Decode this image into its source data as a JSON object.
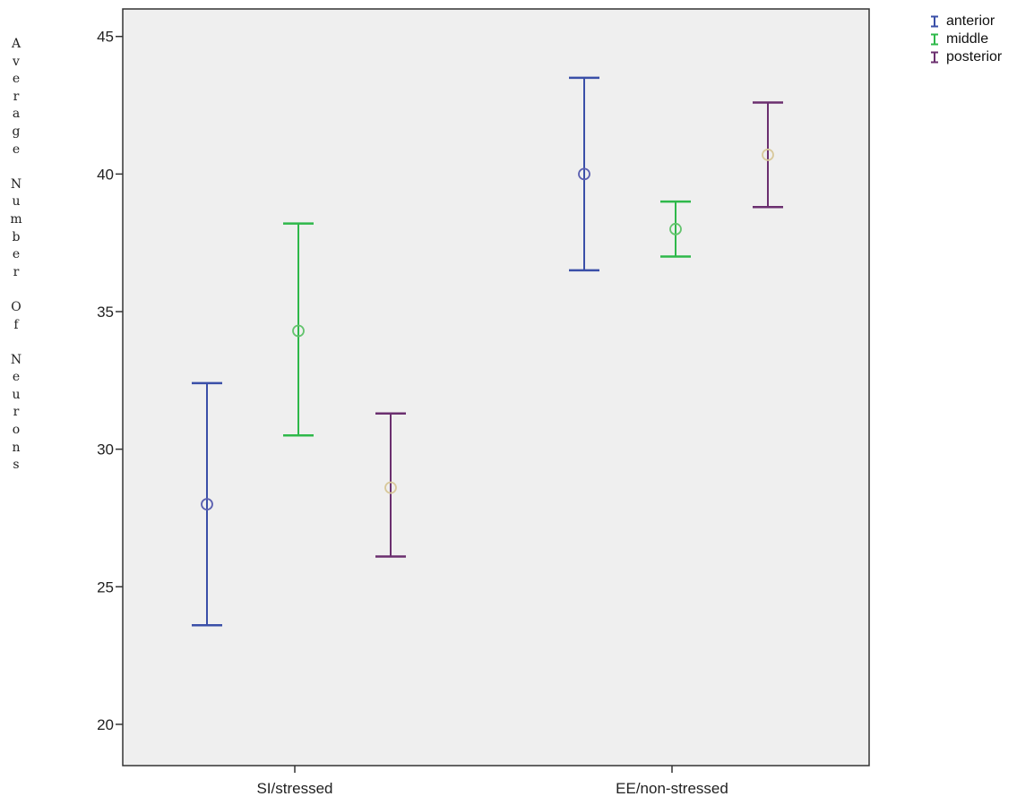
{
  "chart_data": {
    "type": "error-bar",
    "ylabel": "Average Number Of Neurons",
    "xlabel": "",
    "ylim": [
      18.5,
      46
    ],
    "yticks": [
      20,
      25,
      30,
      35,
      40,
      45
    ],
    "categories": [
      "SI/stressed",
      "EE/non-stressed"
    ],
    "grid": false,
    "legend_position": "top-right",
    "series": [
      {
        "name": "anterior",
        "color": "#3a4fa8",
        "marker_color": "#5a5fb0",
        "points": [
          {
            "category": "SI/stressed",
            "mean": 28.0,
            "lower": 23.6,
            "upper": 32.4
          },
          {
            "category": "EE/non-stressed",
            "mean": 40.0,
            "lower": 36.5,
            "upper": 43.5
          }
        ]
      },
      {
        "name": "middle",
        "color": "#2eb84a",
        "marker_color": "#63c36d",
        "points": [
          {
            "category": "SI/stressed",
            "mean": 34.3,
            "lower": 30.5,
            "upper": 38.2
          },
          {
            "category": "EE/non-stressed",
            "mean": 38.0,
            "lower": 37.0,
            "upper": 39.0
          }
        ]
      },
      {
        "name": "posterior",
        "color": "#6b2f6f",
        "marker_color": "#d8c89a",
        "points": [
          {
            "category": "SI/stressed",
            "mean": 28.6,
            "lower": 26.1,
            "upper": 31.3
          },
          {
            "category": "EE/non-stressed",
            "mean": 40.7,
            "lower": 38.8,
            "upper": 42.6
          }
        ]
      }
    ],
    "plot_background": "#efefef"
  }
}
